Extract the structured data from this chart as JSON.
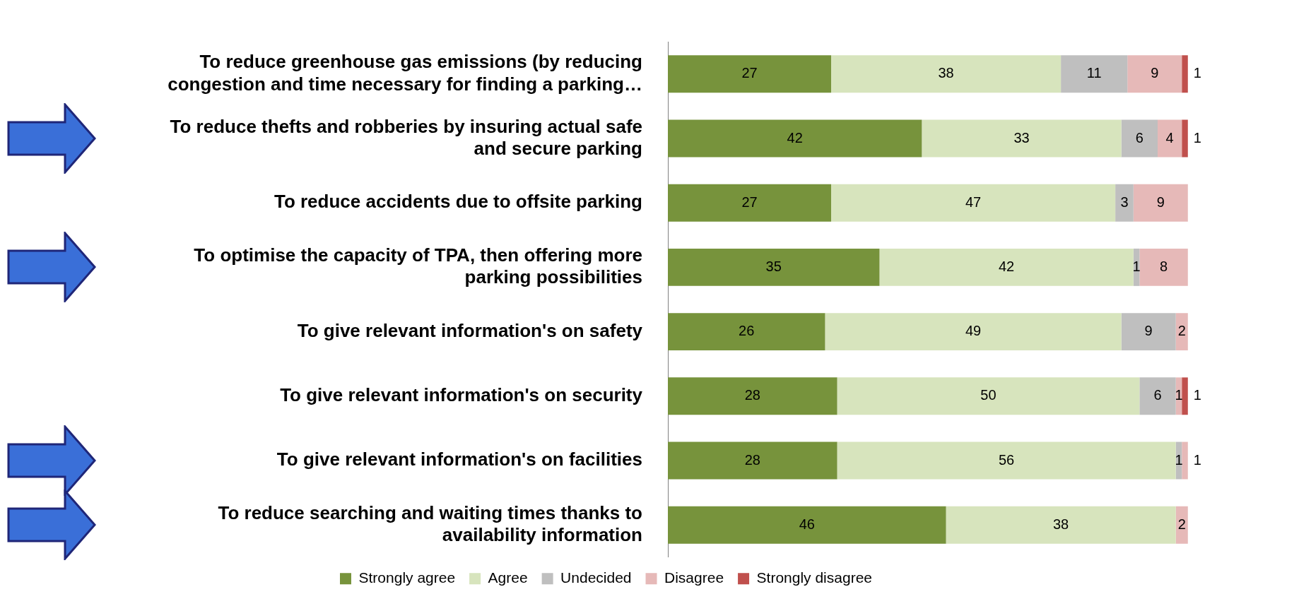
{
  "chart_data": {
    "type": "bar",
    "orientation": "horizontal",
    "stacked": true,
    "data_labels": true,
    "legend": "bottom",
    "categories": [
      "To reduce greenhouse gas emissions (by reducing congestion and time necessary for finding a parking…",
      "To reduce thefts and robberies by insuring actual safe and secure parking",
      "To reduce accidents due to offsite parking",
      "To optimise the capacity of TPA, then offering more parking possibilities",
      "To give relevant information's on safety",
      "To give relevant information's on security",
      "To give relevant information's on facilities",
      "To reduce searching and waiting times thanks to availability information"
    ],
    "series": [
      {
        "name": "Strongly agree",
        "color": "#77933c",
        "values": [
          27,
          42,
          27,
          35,
          26,
          28,
          28,
          46
        ]
      },
      {
        "name": "Agree",
        "color": "#d7e4bd",
        "values": [
          38,
          33,
          47,
          42,
          49,
          50,
          56,
          38
        ]
      },
      {
        "name": "Undecided",
        "color": "#bfbfbf",
        "values": [
          11,
          6,
          3,
          1,
          9,
          6,
          1,
          null
        ]
      },
      {
        "name": "Disagree",
        "color": "#e6b9b8",
        "values": [
          9,
          4,
          9,
          8,
          2,
          1,
          1,
          2
        ]
      },
      {
        "name": "Strongly disagree",
        "color": "#c0504d",
        "values": [
          1,
          1,
          null,
          null,
          null,
          1,
          null,
          null
        ]
      }
    ]
  }
}
